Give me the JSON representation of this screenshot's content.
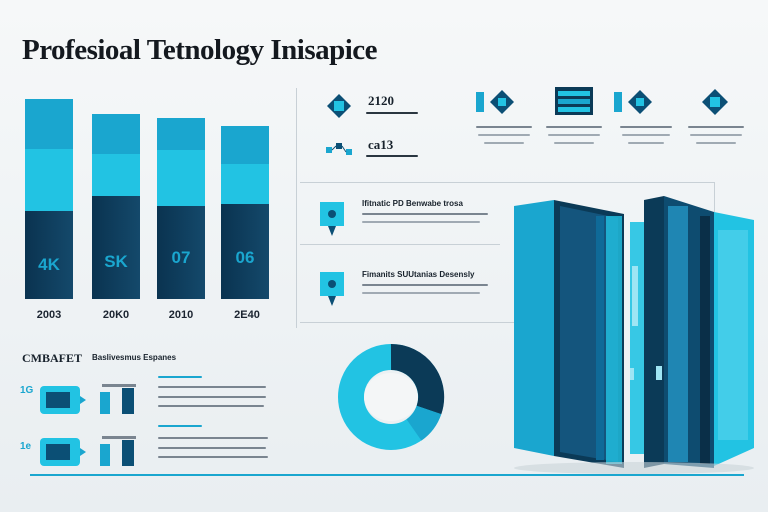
{
  "title": "Profesioal Tetnology Inisapice",
  "bars": [
    {
      "value_label": "4K",
      "year": "2003"
    },
    {
      "value_label": "SK",
      "year": "20K0"
    },
    {
      "value_label": "07",
      "year": "2010"
    },
    {
      "value_label": "06",
      "year": "2E40"
    }
  ],
  "stats": {
    "stat1": "2120",
    "stat2": "ca13"
  },
  "features": [
    {
      "heading": "Ifitnatic PD Benwabe trosa"
    },
    {
      "heading": "Fimanits SUUtanias Desensly"
    }
  ],
  "legend": {
    "heading": "CMBAFET",
    "subheading": "Baslivesmus Espanes",
    "row1_num": "1G",
    "row2_num": "1e"
  },
  "colors": {
    "accent": "#1aa6cf",
    "dark": "#0b3a57",
    "light": "#22c3e3"
  }
}
